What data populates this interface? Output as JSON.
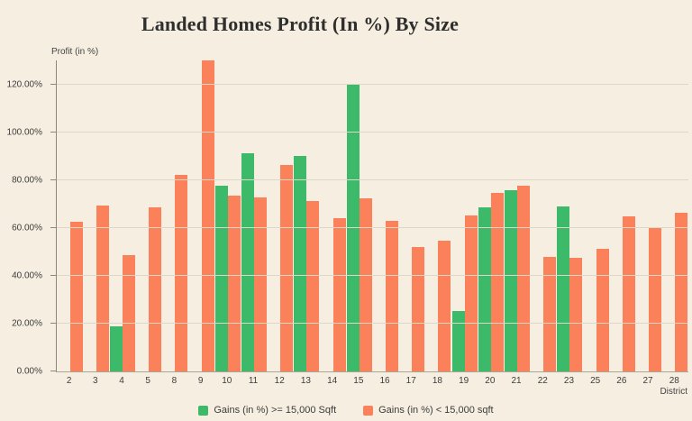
{
  "title": "Landed Homes Profit (In %) By Size",
  "y_axis_title": "Profit (in %)",
  "x_axis_title": "District",
  "legend": [
    {
      "label": "Gains (in %) >= 15,000 Sqft",
      "color": "#3db96a"
    },
    {
      "label": "Gains (in %) < 15,000 sqft",
      "color": "#fb815a"
    }
  ],
  "colors": {
    "background": "#f6efe1",
    "green": "#3db96a",
    "orange": "#fb815a",
    "gridline": "#ddd7c7",
    "axis": "#8a877b",
    "text": "#3c3c3c"
  },
  "chart_data": {
    "type": "bar",
    "title": "Landed Homes Profit (In %) By Size",
    "xlabel": "District",
    "ylabel": "Profit (in %)",
    "categories": [
      "2",
      "3",
      "4",
      "5",
      "8",
      "9",
      "10",
      "11",
      "12",
      "13",
      "14",
      "15",
      "16",
      "17",
      "18",
      "19",
      "20",
      "21",
      "22",
      "23",
      "25",
      "26",
      "27",
      "28"
    ],
    "series": [
      {
        "name": "Gains (in %) >= 15,000 Sqft",
        "color": "#3db96a",
        "values": [
          null,
          null,
          18.8,
          null,
          null,
          null,
          77.5,
          91.2,
          null,
          90.0,
          null,
          120.0,
          null,
          null,
          null,
          25.4,
          68.6,
          75.8,
          null,
          68.8,
          null,
          null,
          null,
          null
        ]
      },
      {
        "name": "Gains (in %) < 15,000 sqft",
        "color": "#fb815a",
        "values": [
          62.5,
          69.4,
          48.6,
          68.4,
          82.0,
          130.0,
          73.3,
          72.8,
          86.3,
          71.2,
          64.2,
          72.2,
          63.0,
          52.0,
          54.6,
          65.3,
          74.8,
          77.8,
          47.9,
          47.3,
          51.2,
          64.8,
          60.0,
          66.2
        ]
      }
    ],
    "ylim": [
      0,
      130
    ],
    "y_tick_values": [
      0,
      20,
      40,
      60,
      80,
      100,
      120
    ],
    "y_tick_labels": [
      "0.00%",
      "20.00%",
      "40.00%",
      "60.00%",
      "80.00%",
      "100.00%",
      "120.00%"
    ],
    "grid": true,
    "legend_position": "bottom"
  }
}
